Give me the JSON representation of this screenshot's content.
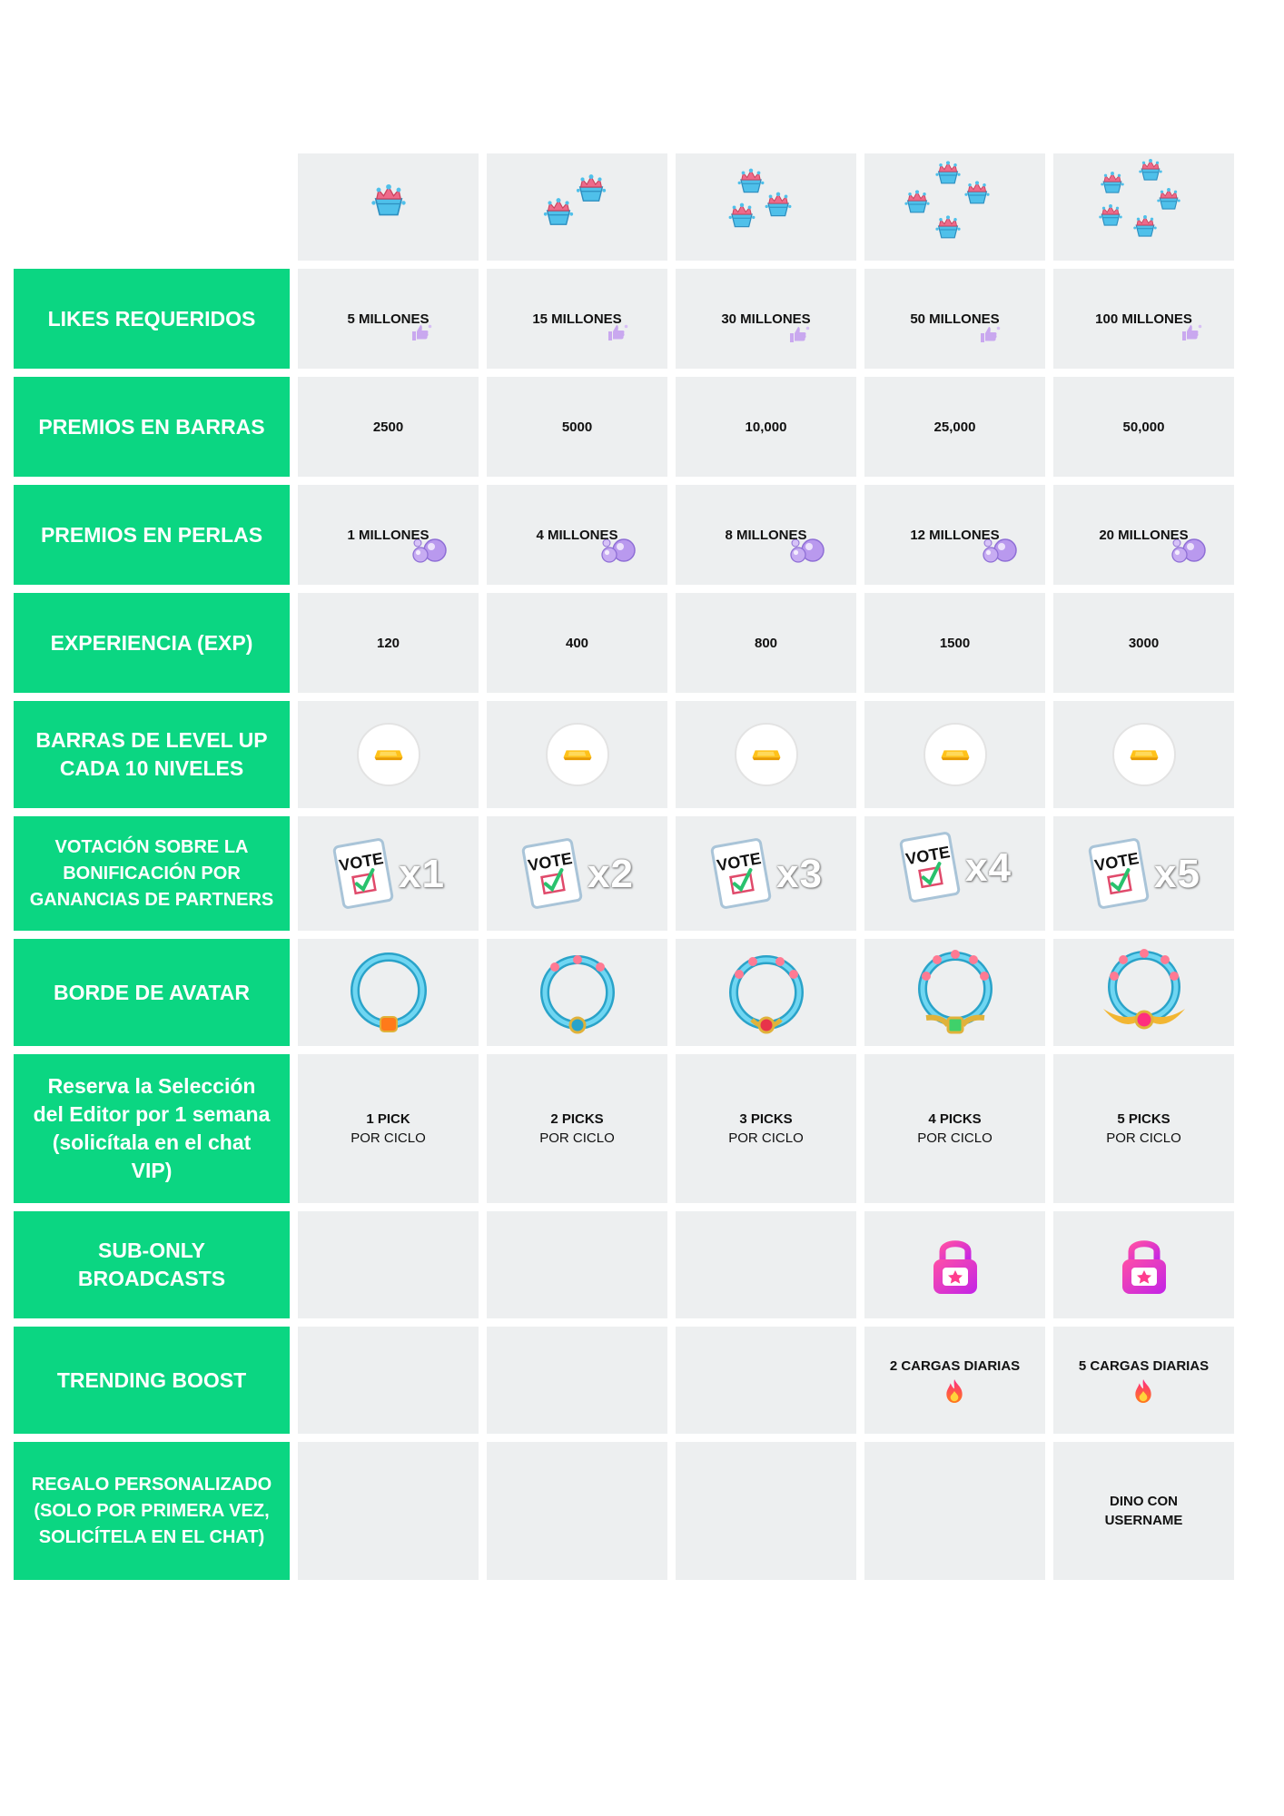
{
  "rows": {
    "likes": {
      "label": "LIKES REQUERIDOS",
      "values": [
        "5 MILLONES",
        "15 MILLONES",
        "30 MILLONES",
        "50 MILLONES",
        "100 MILLONES"
      ]
    },
    "bars": {
      "label": "PREMIOS EN BARRAS",
      "values": [
        "2500",
        "5000",
        "10,000",
        "25,000",
        "50,000"
      ]
    },
    "pearls": {
      "label": "PREMIOS EN PERLAS",
      "values": [
        "1 MILLONES",
        "4 MILLONES",
        "8 MILLONES",
        "12 MILLONES",
        "20 MILLONES"
      ]
    },
    "exp": {
      "label": "EXPERIENCIA (EXP)",
      "values": [
        "120",
        "400",
        "800",
        "1500",
        "3000"
      ]
    },
    "levelup": {
      "label": "BARRAS DE LEVEL UP CADA 10 NIVELES"
    },
    "vote": {
      "label": "VOTACIÓN SOBRE LA BONIFICACIÓN POR GANANCIAS DE PARTNERS",
      "card_text": "VOTE",
      "multipliers": [
        "x1",
        "x2",
        "x3",
        "x4",
        "x5"
      ]
    },
    "avatar": {
      "label": "BORDE DE AVATAR"
    },
    "editor": {
      "label": "Reserva la Selección del Editor por 1 semana (solicítala en el chat VIP)",
      "values": [
        [
          "1 PICK",
          "POR CICLO"
        ],
        [
          "2 PICKS",
          "POR CICLO"
        ],
        [
          "3 PICKS",
          "POR CICLO"
        ],
        [
          "4 PICKS",
          "POR CICLO"
        ],
        [
          "5 PICKS",
          "POR CICLO"
        ]
      ]
    },
    "subonly": {
      "label": "SUB-ONLY BROADCASTS"
    },
    "trending": {
      "label": "TRENDING BOOST",
      "values": [
        "",
        "",
        "",
        "2 CARGAS DIARIAS",
        "5 CARGAS DIARIAS"
      ]
    },
    "gift": {
      "label": "REGALO PERSONALIZADO (SOLO POR PRIMERA VEZ, SOLICÍTELA EN EL CHAT)",
      "values": [
        "",
        "",
        "",
        "",
        "DINO CON USERNAME"
      ]
    }
  },
  "tiers": [
    {
      "crowns": 1,
      "avatar_gem": "#ff7a1a"
    },
    {
      "crowns": 2,
      "avatar_gem": "#2aa3c9"
    },
    {
      "crowns": 3,
      "avatar_gem": "#e8334a"
    },
    {
      "crowns": 4,
      "avatar_gem": "#3fd16a"
    },
    {
      "crowns": 5,
      "avatar_gem": "#ff2e7e"
    }
  ],
  "colors": {
    "label_bg": "#0bd682",
    "cell_bg": "#edeff0"
  },
  "icons": {
    "header": "crown-basket-icon",
    "likes": "thumbs-up-icon",
    "pearls": "pearl-icon",
    "levelup": "gold-bar-icon",
    "vote": "vote-card-icon",
    "avatar": "avatar-frame-icon",
    "subonly": "lock-icon",
    "trending": "fire-icon"
  }
}
